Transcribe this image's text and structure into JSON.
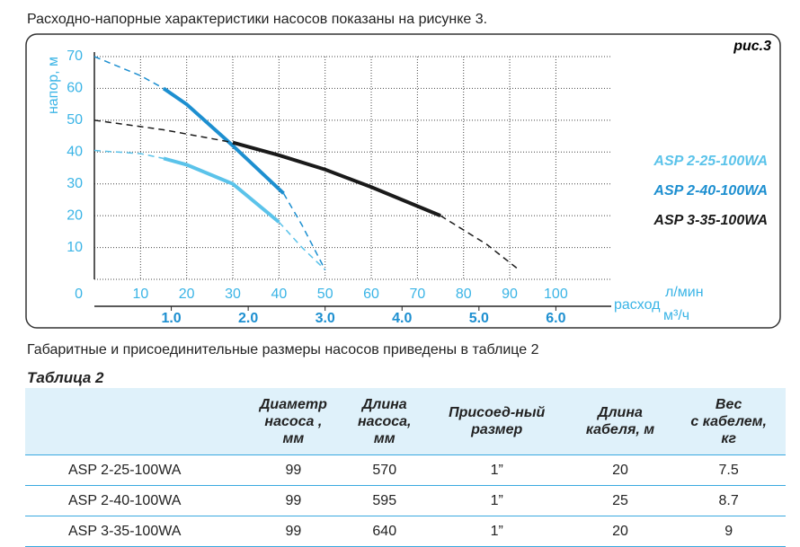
{
  "intro": "Расходно-напорные характеристики насосов показаны на рисунке 3.",
  "chart_data": {
    "type": "line",
    "label": "рис.3",
    "ylabel": "напор, м",
    "xlabel": "расход",
    "xunit": "л/мин",
    "x2unit": "м³/ч",
    "ylim": [
      0,
      70
    ],
    "yticks": [
      0,
      10,
      20,
      30,
      40,
      50,
      60,
      70
    ],
    "xlim": [
      0,
      112
    ],
    "xticks": [
      10,
      20,
      30,
      40,
      50,
      60,
      70,
      80,
      90,
      100
    ],
    "x2lim": [
      0,
      6.72
    ],
    "x2ticks": [
      {
        "value": 1,
        "label": "1.0"
      },
      {
        "value": 2,
        "label": "2.0"
      },
      {
        "value": 3,
        "label": "3.0"
      },
      {
        "value": 4,
        "label": "4.0"
      },
      {
        "value": 5,
        "label": "5.0"
      },
      {
        "value": 6,
        "label": "6.0"
      }
    ],
    "grid": true,
    "series": [
      {
        "name": "ASP 2-25-100WA",
        "color": "#5bc3ea",
        "segments": [
          {
            "style": "dashed",
            "x": [
              0,
              10,
              15
            ],
            "values": [
              40.5,
              39.5,
              38
            ]
          },
          {
            "style": "solid",
            "x": [
              15,
              20,
              30,
              40
            ],
            "values": [
              38,
              36,
              30,
              18
            ]
          },
          {
            "style": "dashed",
            "x": [
              40,
              45,
              50
            ],
            "values": [
              18,
              10,
              3
            ]
          }
        ]
      },
      {
        "name": "ASP 2-40-100WA",
        "color": "#1d8fd0",
        "segments": [
          {
            "style": "dashed",
            "x": [
              0,
              10,
              15
            ],
            "values": [
              70,
              64,
              60
            ]
          },
          {
            "style": "solid",
            "x": [
              15,
              20,
              30,
              41
            ],
            "values": [
              60,
              55,
              42,
              27
            ]
          },
          {
            "style": "dashed",
            "x": [
              41,
              45,
              50
            ],
            "values": [
              27,
              17,
              3
            ]
          }
        ]
      },
      {
        "name": "ASP 3-35-100WA",
        "color": "#1a1a1a",
        "segments": [
          {
            "style": "dashed",
            "x": [
              0,
              15,
              30
            ],
            "values": [
              50,
              47,
              43
            ]
          },
          {
            "style": "solid",
            "x": [
              30,
              40,
              50,
              60,
              70,
              75
            ],
            "values": [
              43,
              39,
              34.5,
              29,
              23,
              20
            ]
          },
          {
            "style": "dashed",
            "x": [
              75,
              85,
              92
            ],
            "values": [
              20,
              11,
              3
            ]
          }
        ]
      }
    ]
  },
  "table_intro": "Габаритные и присоединительные размеры насосов приведены в таблице 2",
  "table": {
    "title": "Таблица 2",
    "header": [
      [
        "Диаметр",
        "насоса ,",
        "мм"
      ],
      [
        "Длина",
        "насоса,",
        "мм"
      ],
      [
        "Присоед-ный",
        "размер"
      ],
      [
        "Длина",
        "кабеля, м"
      ],
      [
        "Вес",
        "с кабелем,",
        "кг"
      ]
    ],
    "rows": [
      [
        "ASP 2-25-100WA",
        "99",
        "570",
        "1”",
        "20",
        "7.5"
      ],
      [
        "ASP 2-40-100WA",
        "99",
        "595",
        "1”",
        "25",
        "8.7"
      ],
      [
        "ASP 3-35-100WA",
        "99",
        "640",
        "1”",
        "20",
        "9"
      ]
    ]
  }
}
